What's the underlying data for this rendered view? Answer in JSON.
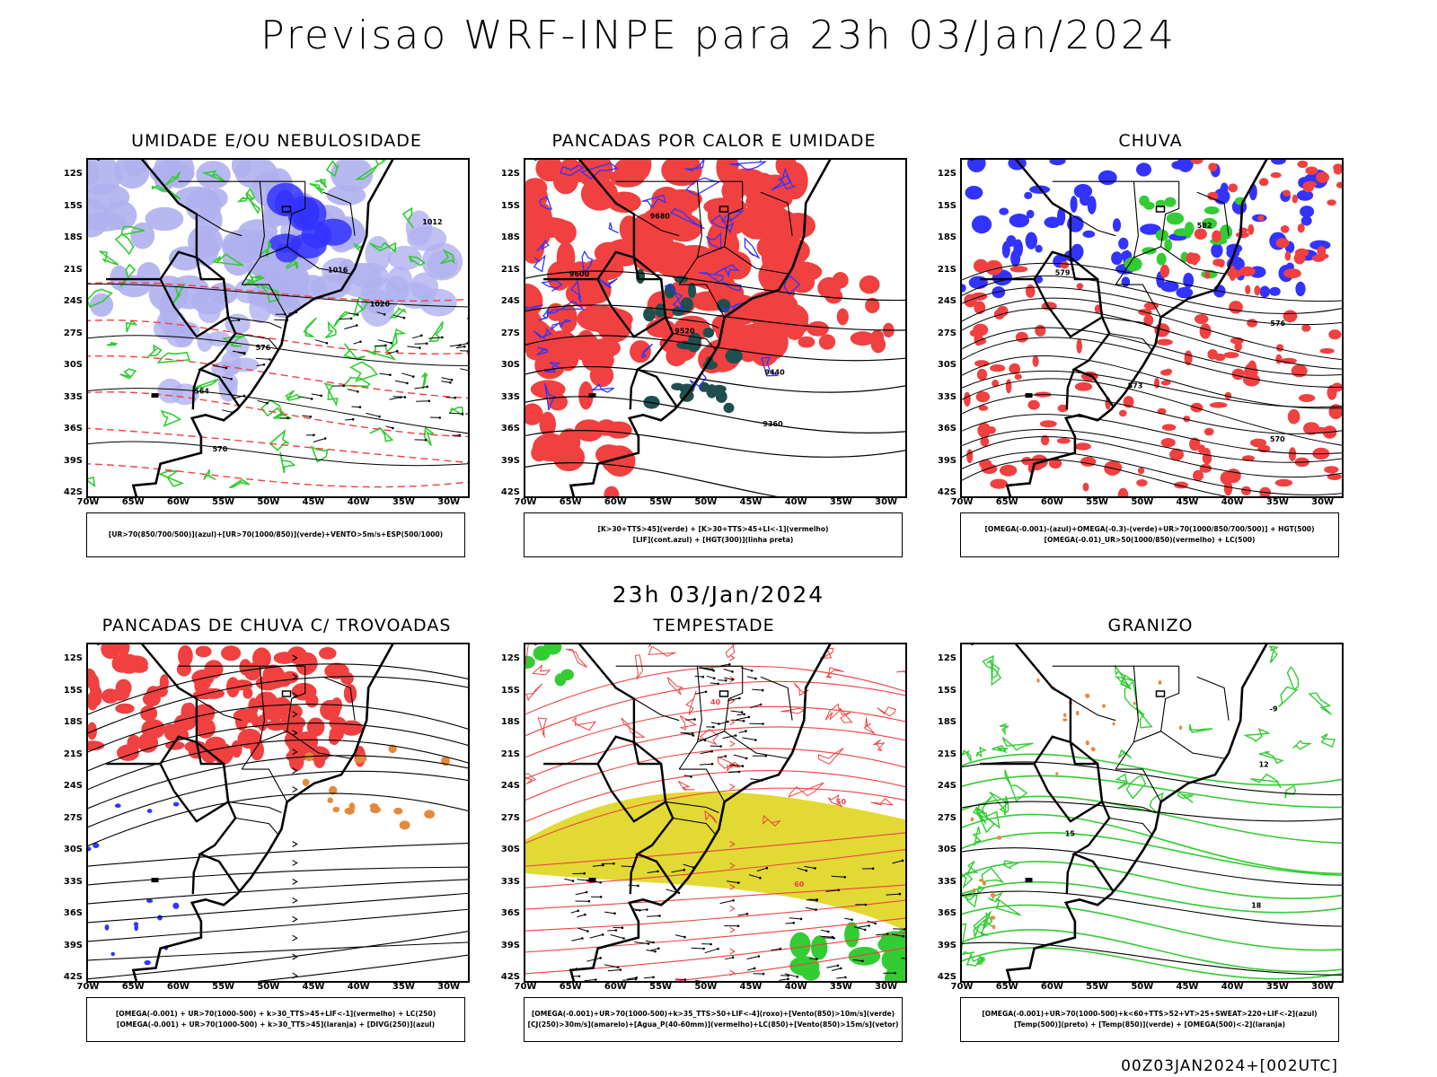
{
  "title": "Previsao WRF-INPE  para 23h 03/Jan/2024",
  "mid_title": "23h 03/Jan/2024",
  "footer": "00Z03JAN2024+[002UTC]",
  "lat_labels": [
    "12S",
    "15S",
    "18S",
    "21S",
    "24S",
    "27S",
    "30S",
    "33S",
    "36S",
    "39S",
    "42S"
  ],
  "lon_labels": [
    "70W",
    "65W",
    "60W",
    "55W",
    "50W",
    "45W",
    "40W",
    "35W",
    "30W"
  ],
  "panels": [
    {
      "title": "UMIDADE E/OU NEBULOSIDADE",
      "legend": [
        "[UR>70(850/700/500)](azul)+[UR>70(1000/850)](verde)+VENTO>5m/s+ESP(500/1000)"
      ],
      "contour_labels": [
        "1012",
        "1016",
        "1020",
        "576",
        "564",
        "570"
      ]
    },
    {
      "title": "PANCADAS POR CALOR E UMIDADE",
      "legend": [
        "[K>30+TTS>45](verde) + [K>30+TTS>45+LI<-1](vermelho)",
        "[LIF](cont.azul) + [HGT(300)](linha preta)"
      ],
      "contour_labels": [
        "9680",
        "9600",
        "9520",
        "9440",
        "9360"
      ]
    },
    {
      "title": "CHUVA",
      "legend": [
        "[OMEGA(-0.001)-(azul)+OMEGA(-0.3)-(verde)+UR>70(1000/850/700/500)] + HGT(500)",
        "[OMEGA(-0.01)_UR>50(1000/850)(vermelho) + LC(500)"
      ],
      "contour_labels": [
        "582",
        "579",
        "576",
        "573",
        "570"
      ]
    },
    {
      "title": "PANCADAS DE CHUVA C/ TROVOADAS",
      "legend": [
        "[OMEGA(-0.001) + UR>70(1000-500) + k>30_TTS>45+LIF<-1](vermelho) + LC(250)",
        "[OMEGA(-0.001) + UR>70(1000-500) + k>30_TTS>45](laranja) + [DIVG(250)](azul)"
      ],
      "contour_labels": []
    },
    {
      "title": "TEMPESTADE",
      "legend": [
        "[OMEGA(-0.001)+UR>70(1000-500)+k>35_TTS>50+LIF<-4](roxo)+[Vento(850)>10m/s](verde)",
        "[CJ(250)>30m/s](amarelo)+[Agua_P(40-60mm)](vermelho)+LC(850)+[Vento(850)>15m/s](vetor)"
      ],
      "contour_labels": [
        "40",
        "50",
        "60"
      ]
    },
    {
      "title": "GRANIZO",
      "legend": [
        "[OMEGA(-0.001)+UR>70(1000-500)+k<60+TTS>52+VT>25+SWEAT>220+LIF<-2](azul)",
        "[Temp(500)](preto) + [Temp(850)](verde) + [OMEGA(500)<-2](laranja)"
      ],
      "contour_labels": [
        "-9",
        "12",
        "15",
        "18"
      ]
    }
  ],
  "colors": {
    "blue": "#3333ff",
    "lightblue": "#b0b0f0",
    "green": "#33cc33",
    "red": "#f04040",
    "darkteal": "#1f4f4f",
    "yellow": "#e2d934",
    "orange": "#e58a3a",
    "black": "#000000"
  }
}
